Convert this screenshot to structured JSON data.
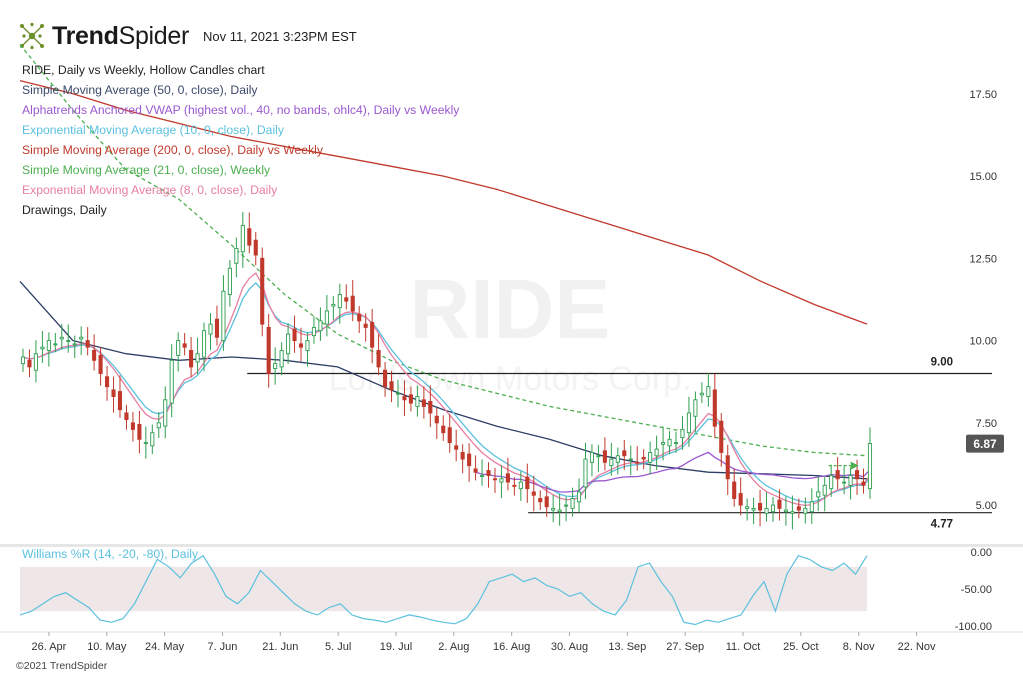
{
  "header": {
    "brand_bold": "Trend",
    "brand_regular": "Spider",
    "timestamp": "Nov 11, 2021 3:23PM EST"
  },
  "legend": {
    "items": [
      {
        "label": "RIDE, Daily vs Weekly, Hollow Candles chart",
        "color": "#222222"
      },
      {
        "label": "Simple Moving Average (50, 0, close), Daily",
        "color": "#3b4a6b"
      },
      {
        "label": "Alphatrends Anchored VWAP (highest vol., 40, no bands, ohlc4), Daily vs Weekly",
        "color": "#9b59d0"
      },
      {
        "label": "Exponential Moving Average (10, 0, close), Daily",
        "color": "#5bc0de"
      },
      {
        "label": "Simple Moving Average (200, 0, close), Daily vs Weekly",
        "color": "#c0392b"
      },
      {
        "label": "Simple Moving Average (21, 0, close), Weekly",
        "color": "#4caf50"
      },
      {
        "label": "Exponential Moving Average (8, 0, close), Daily",
        "color": "#e87ea1"
      },
      {
        "label": "Drawings, Daily",
        "color": "#222222"
      }
    ]
  },
  "watermark": {
    "ticker": "RIDE",
    "company": "Lordstown Motors Corp."
  },
  "williams_label": "Williams %R (14, -20, -80), Daily",
  "footer": "©2021 TrendSpider",
  "colors": {
    "up": "#2e9e4f",
    "down": "#c0392b",
    "sma50": "#2c3e66",
    "vwap": "#9b59d0",
    "ema10": "#5bc0de",
    "sma200": "#c0392b",
    "sma21": "#4caf50",
    "ema8": "#e87ea1",
    "price_badge": "#555555"
  },
  "chart_data": {
    "type": "candlestick",
    "symbol": "RIDE",
    "timeframe": "Daily",
    "y_range": [
      4.0,
      19.5
    ],
    "y_ticks": [
      5.0,
      7.5,
      10.0,
      12.5,
      15.0,
      17.5
    ],
    "y_tick_labels": [
      "5.00",
      "7.50",
      "10.00",
      "12.50",
      "15.00",
      "17.50"
    ],
    "x_tick_labels": [
      "26. Apr",
      "10. May",
      "24. May",
      "7. Jun",
      "21. Jun",
      "5. Jul",
      "19. Jul",
      "2. Aug",
      "16. Aug",
      "30. Aug",
      "13. Sep",
      "27. Sep",
      "11. Oct",
      "25. Oct",
      "8. Nov",
      "22. Nov"
    ],
    "x_ticks_day_index": [
      7,
      21,
      35,
      49,
      63,
      77,
      91,
      105,
      119,
      133,
      147,
      161,
      175,
      189,
      203,
      217
    ],
    "x_day_range": [
      0,
      228
    ],
    "current_price": 6.87,
    "current_price_label": "6.87",
    "resistance": {
      "value": 9.0,
      "label": "9.00",
      "start_day": 55
    },
    "support": {
      "value": 4.77,
      "label": "4.77",
      "start_day": 123
    },
    "closes": [
      9.5,
      9.2,
      9.6,
      9.8,
      10.0,
      9.9,
      10.1,
      10.0,
      9.9,
      10.1,
      9.8,
      9.4,
      9.0,
      8.6,
      8.3,
      7.9,
      7.6,
      7.3,
      7.0,
      6.9,
      7.2,
      7.5,
      8.2,
      9.4,
      10.0,
      9.8,
      9.2,
      9.6,
      10.3,
      10.5,
      10.1,
      11.5,
      12.2,
      12.8,
      13.5,
      12.9,
      12.6,
      10.5,
      9.0,
      9.3,
      9.7,
      10.2,
      10.0,
      9.8,
      10.0,
      10.4,
      10.6,
      10.9,
      11.1,
      11.4,
      11.2,
      10.9,
      10.6,
      10.4,
      9.8,
      9.2,
      8.6,
      8.5,
      8.4,
      8.2,
      8.1,
      8.3,
      8.0,
      7.8,
      7.5,
      7.2,
      6.9,
      6.7,
      6.4,
      6.2,
      6.0,
      5.9,
      5.9,
      5.8,
      5.8,
      5.7,
      5.6,
      5.7,
      5.5,
      5.3,
      5.1,
      4.95,
      4.9,
      4.85,
      5.0,
      5.2,
      5.4,
      6.4,
      6.6,
      6.5,
      6.3,
      6.4,
      6.5,
      6.5,
      6.4,
      6.3,
      6.4,
      6.6,
      6.7,
      6.9,
      7.0,
      6.9,
      7.3,
      7.8,
      8.2,
      8.4,
      8.6,
      7.4,
      6.6,
      5.8,
      5.2,
      5.0,
      4.95,
      4.9,
      4.85,
      4.9,
      5.0,
      4.9,
      4.85,
      4.8,
      4.85,
      4.9,
      5.1,
      5.4,
      5.6,
      5.9,
      5.8,
      5.7,
      5.9,
      5.8,
      5.6,
      6.87
    ],
    "series": [
      {
        "name": "Simple Moving Average (50, 0, close), Daily",
        "start_day": 0,
        "end_day": 205,
        "values": [
          11.8,
          10.0,
          9.6,
          9.4,
          9.5,
          9.4,
          9.2,
          8.5,
          7.9,
          7.4,
          7.0,
          6.5,
          6.2,
          6.0,
          5.95,
          5.9,
          5.8
        ]
      },
      {
        "name": "Simple Moving Average (200, 0, close), Daily vs Weekly",
        "start_day": 0,
        "end_day": 205,
        "values": [
          17.9,
          17.5,
          17.0,
          16.6,
          16.2,
          15.9,
          15.6,
          15.3,
          15.0,
          14.6,
          14.1,
          13.6,
          13.1,
          12.6,
          11.8,
          11.1,
          10.5
        ]
      },
      {
        "name": "Simple Moving Average (21, 0, close), Weekly",
        "start_day": 0,
        "end_day": 205,
        "values": [
          19.0,
          17.0,
          15.2,
          14.3,
          12.9,
          11.4,
          10.2,
          9.4,
          8.8,
          8.4,
          8.0,
          7.7,
          7.4,
          7.1,
          6.8,
          6.6,
          6.5
        ]
      }
    ],
    "williams_r": {
      "name": "Williams %R (14, -20, -80), Daily",
      "y_range": [
        -100,
        0
      ],
      "y_ticks": [
        0,
        -50,
        -100
      ],
      "y_tick_labels": [
        "0.00",
        "-50.00",
        "-100.00"
      ],
      "band": [
        -80,
        -20
      ],
      "values": [
        -85,
        -80,
        -70,
        -60,
        -55,
        -65,
        -75,
        -92,
        -95,
        -90,
        -70,
        -40,
        -10,
        -20,
        -35,
        -15,
        -5,
        -30,
        -60,
        -70,
        -55,
        -25,
        -40,
        -55,
        -70,
        -80,
        -85,
        -75,
        -70,
        -85,
        -90,
        -92,
        -95,
        -90,
        -85,
        -88,
        -92,
        -95,
        -97,
        -90,
        -70,
        -40,
        -35,
        -30,
        -40,
        -35,
        -45,
        -50,
        -60,
        -55,
        -70,
        -80,
        -85,
        -65,
        -20,
        -15,
        -40,
        -60,
        -95,
        -98,
        -92,
        -95,
        -90,
        -85,
        -60,
        -40,
        -80,
        -30,
        -5,
        -10,
        -20,
        -25,
        -15,
        -30,
        -5
      ]
    }
  }
}
